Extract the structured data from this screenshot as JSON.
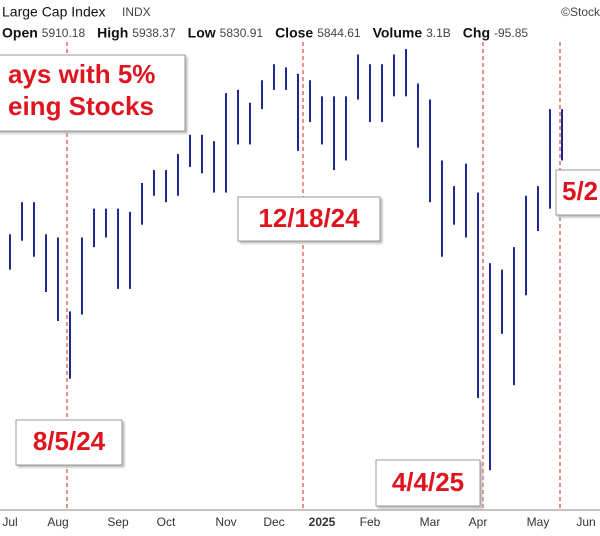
{
  "chart_data": {
    "type": "range-bar",
    "title": "Large Cap Index",
    "symbol": "INDX",
    "credit": "©Stock",
    "quote": [
      {
        "label": "Open",
        "value": "5910.18"
      },
      {
        "label": "High",
        "value": "5938.37"
      },
      {
        "label": "Low",
        "value": "5830.91"
      },
      {
        "label": "Close",
        "value": "5844.61"
      },
      {
        "label": "Volume",
        "value": "3.1B"
      },
      {
        "label": "Chg",
        "value": "-95.85"
      }
    ],
    "headline": [
      "ays with 5%",
      "eing Stocks"
    ],
    "annotations": [
      "8/5/24",
      "12/18/24",
      "4/4/25",
      "5/2"
    ],
    "color": "#1f2a8c",
    "ylim": [
      4630,
      6300
    ],
    "categories": [
      "Jul",
      null,
      null,
      null,
      "Aug",
      null,
      null,
      null,
      null,
      "Sep",
      null,
      null,
      null,
      "Oct",
      null,
      null,
      null,
      null,
      "Nov",
      null,
      null,
      null,
      "Dec",
      null,
      null,
      null,
      "2025",
      null,
      null,
      null,
      "Feb",
      null,
      null,
      null,
      null,
      "Mar",
      null,
      null,
      null,
      "Apr",
      null,
      null,
      null,
      null,
      "May",
      null,
      null,
      null,
      "Jun"
    ],
    "high": [
      5570,
      5670,
      5670,
      5570,
      5560,
      5330,
      5560,
      5650,
      5650,
      5650,
      5640,
      5730,
      5770,
      5770,
      5820,
      5880,
      5880,
      5860,
      6010,
      6020,
      5980,
      6050,
      6100,
      6090,
      6070,
      6050,
      6000,
      6000,
      6000,
      6130,
      6100,
      6100,
      6130,
      6147,
      6040,
      5990,
      5800,
      5720,
      5790,
      5700,
      5480,
      5460,
      5530,
      5690,
      5720,
      5960,
      5960,
      null,
      null
    ],
    "low": [
      5460,
      5550,
      5500,
      5390,
      5300,
      5120,
      5320,
      5530,
      5560,
      5400,
      5400,
      5600,
      5690,
      5670,
      5690,
      5780,
      5760,
      5700,
      5700,
      5850,
      5850,
      5960,
      6020,
      6020,
      5830,
      5920,
      5850,
      5770,
      5800,
      5990,
      5920,
      5920,
      6000,
      6000,
      5840,
      5670,
      5500,
      5600,
      5560,
      5060,
      4835,
      5260,
      5100,
      5380,
      5580,
      5650,
      5800,
      null,
      null
    ]
  }
}
